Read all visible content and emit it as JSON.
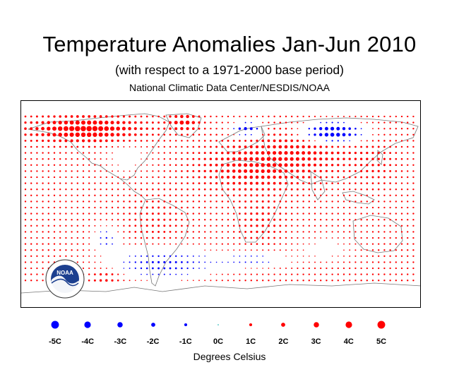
{
  "header": {
    "title": "Temperature Anomalies Jan-Jun 2010",
    "subtitle": "(with respect to a 1971-2000 base period)",
    "source": "National Climatic Data Center/NESDIS/NOAA"
  },
  "logo": {
    "text": "NOAA",
    "ring_text": "U.S. DEPARTMENT OF COMMERCE"
  },
  "legend": {
    "items": [
      {
        "label": "-5C",
        "value": -5
      },
      {
        "label": "-4C",
        "value": -4
      },
      {
        "label": "-3C",
        "value": -3
      },
      {
        "label": "-2C",
        "value": -2
      },
      {
        "label": "-1C",
        "value": -1
      },
      {
        "label": "0C",
        "value": 0
      },
      {
        "label": "1C",
        "value": 1
      },
      {
        "label": "2C",
        "value": 2
      },
      {
        "label": "3C",
        "value": 3
      },
      {
        "label": "4C",
        "value": 4
      },
      {
        "label": "5C",
        "value": 5
      }
    ],
    "units": "Degrees Celsius"
  },
  "colors": {
    "warm": "#ff0000",
    "cool": "#0000ff",
    "neutral": "#00aaaa",
    "land": "#777777"
  }
}
